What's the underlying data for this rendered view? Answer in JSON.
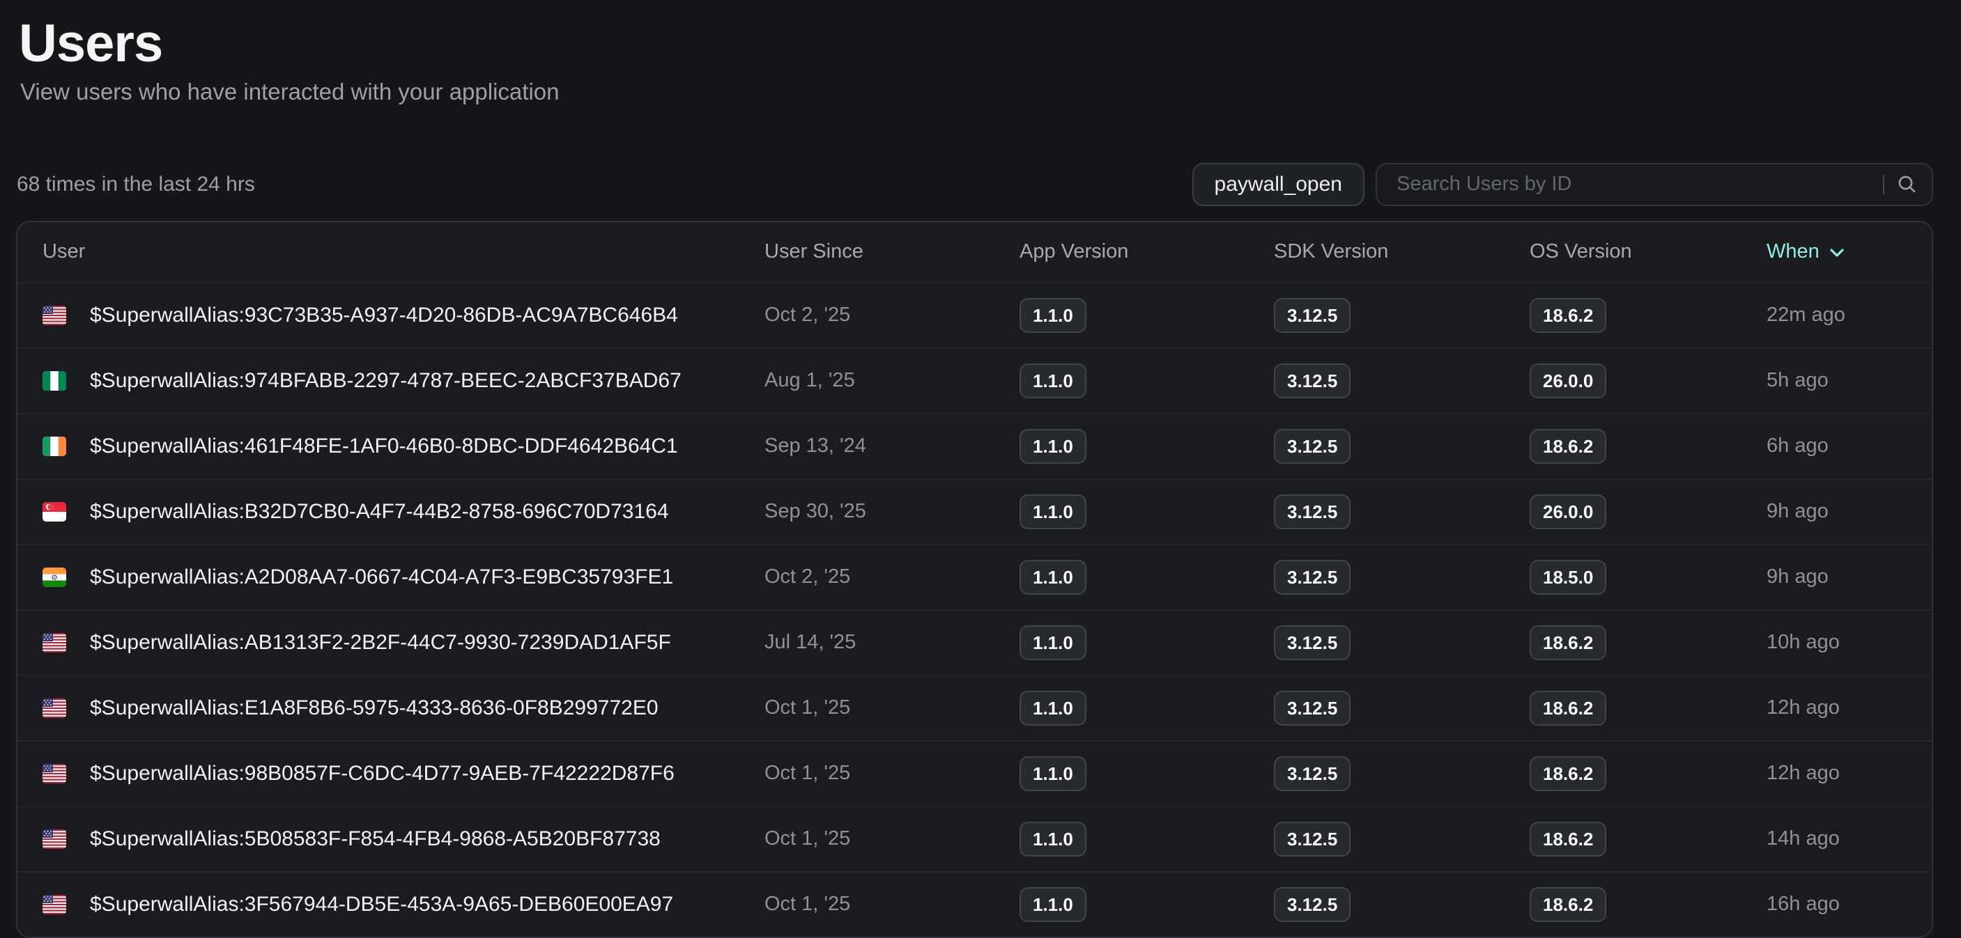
{
  "header": {
    "title": "Users",
    "subtitle": "View users who have interacted with your application"
  },
  "toolbar": {
    "events_summary": "68 times in the last 24 hrs",
    "filter_label": "paywall_open",
    "search_placeholder": "Search Users by ID",
    "search_icon": "magnifier-icon"
  },
  "colors": {
    "accent": "#8FEFDE"
  },
  "table": {
    "columns": [
      "User",
      "User Since",
      "App Version",
      "SDK Version",
      "OS Version",
      "When"
    ],
    "sorted_column": "When",
    "sort_indicator": "chevron-down-icon",
    "rows": [
      {
        "flag": "us",
        "user": "$SuperwallAlias:93C73B35-A937-4D20-86DB-AC9A7BC646B4",
        "user_since": "Oct 2, '25",
        "app_version": "1.1.0",
        "sdk_version": "3.12.5",
        "os_version": "18.6.2",
        "when": "22m ago"
      },
      {
        "flag": "ng",
        "user": "$SuperwallAlias:974BFABB-2297-4787-BEEC-2ABCF37BAD67",
        "user_since": "Aug 1, '25",
        "app_version": "1.1.0",
        "sdk_version": "3.12.5",
        "os_version": "26.0.0",
        "when": "5h ago"
      },
      {
        "flag": "ie",
        "user": "$SuperwallAlias:461F48FE-1AF0-46B0-8DBC-DDF4642B64C1",
        "user_since": "Sep 13, '24",
        "app_version": "1.1.0",
        "sdk_version": "3.12.5",
        "os_version": "18.6.2",
        "when": "6h ago"
      },
      {
        "flag": "sg",
        "user": "$SuperwallAlias:B32D7CB0-A4F7-44B2-8758-696C70D73164",
        "user_since": "Sep 30, '25",
        "app_version": "1.1.0",
        "sdk_version": "3.12.5",
        "os_version": "26.0.0",
        "when": "9h ago"
      },
      {
        "flag": "in",
        "user": "$SuperwallAlias:A2D08AA7-0667-4C04-A7F3-E9BC35793FE1",
        "user_since": "Oct 2, '25",
        "app_version": "1.1.0",
        "sdk_version": "3.12.5",
        "os_version": "18.5.0",
        "when": "9h ago"
      },
      {
        "flag": "us",
        "user": "$SuperwallAlias:AB1313F2-2B2F-44C7-9930-7239DAD1AF5F",
        "user_since": "Jul 14, '25",
        "app_version": "1.1.0",
        "sdk_version": "3.12.5",
        "os_version": "18.6.2",
        "when": "10h ago"
      },
      {
        "flag": "us",
        "user": "$SuperwallAlias:E1A8F8B6-5975-4333-8636-0F8B299772E0",
        "user_since": "Oct 1, '25",
        "app_version": "1.1.0",
        "sdk_version": "3.12.5",
        "os_version": "18.6.2",
        "when": "12h ago"
      },
      {
        "flag": "us",
        "user": "$SuperwallAlias:98B0857F-C6DC-4D77-9AEB-7F42222D87F6",
        "user_since": "Oct 1, '25",
        "app_version": "1.1.0",
        "sdk_version": "3.12.5",
        "os_version": "18.6.2",
        "when": "12h ago"
      },
      {
        "flag": "us",
        "user": "$SuperwallAlias:5B08583F-F854-4FB4-9868-A5B20BF87738",
        "user_since": "Oct 1, '25",
        "app_version": "1.1.0",
        "sdk_version": "3.12.5",
        "os_version": "18.6.2",
        "when": "14h ago"
      },
      {
        "flag": "us",
        "user": "$SuperwallAlias:3F567944-DB5E-453A-9A65-DEB60E00EA97",
        "user_since": "Oct 1, '25",
        "app_version": "1.1.0",
        "sdk_version": "3.12.5",
        "os_version": "18.6.2",
        "when": "16h ago"
      }
    ]
  }
}
